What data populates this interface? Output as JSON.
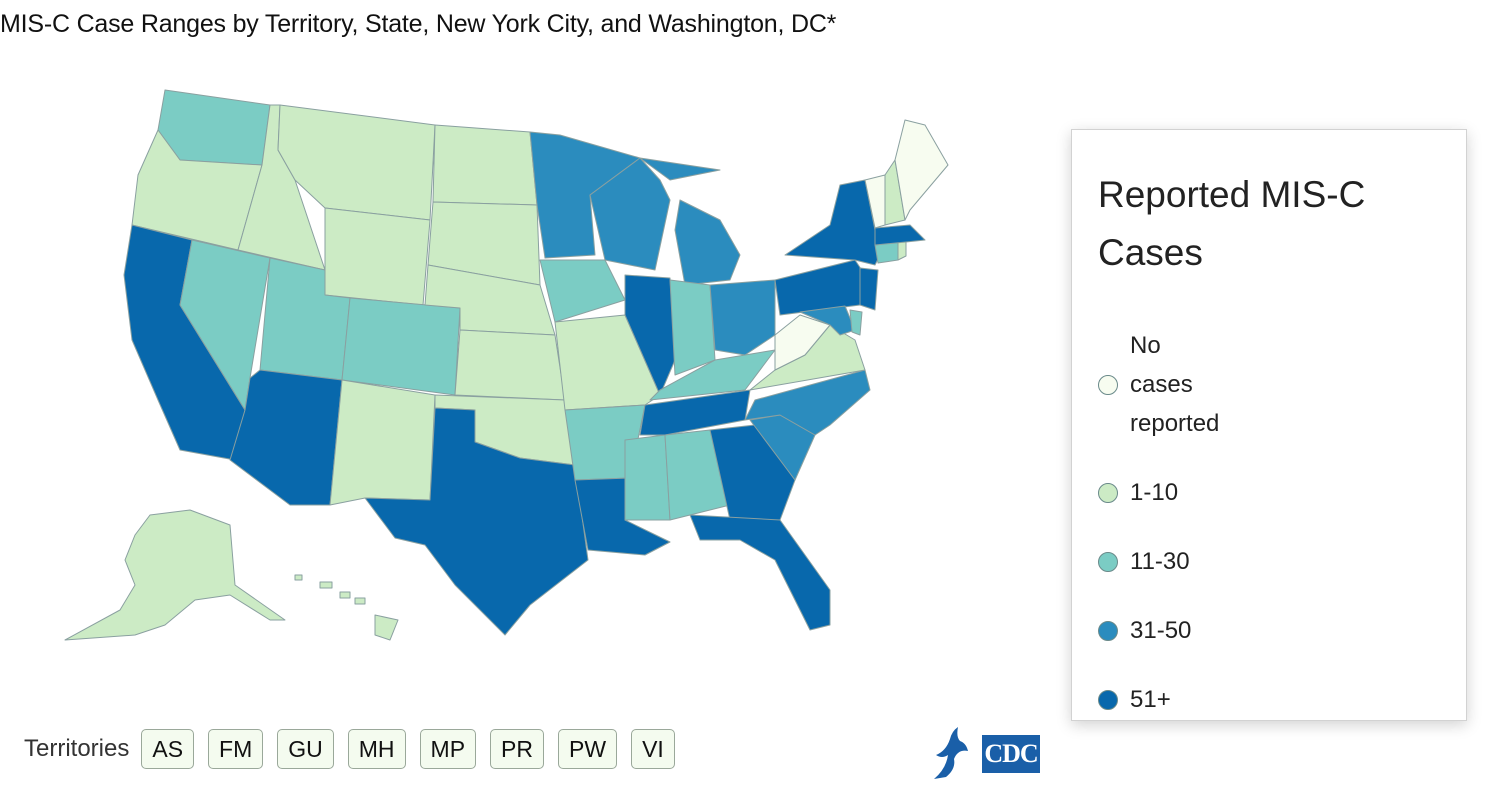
{
  "title": "MIS-C Case Ranges by Territory, State, New York City, and Washington, DC*",
  "legend": {
    "title": "Reported MIS-C Cases",
    "items": [
      {
        "label": "No cases reported",
        "color": "#f7fcf0"
      },
      {
        "label": "1-10",
        "color": "#ccebc5"
      },
      {
        "label": "11-30",
        "color": "#7bccc4"
      },
      {
        "label": "31-50",
        "color": "#2b8cbe"
      },
      {
        "label": "51+",
        "color": "#0868ac"
      }
    ]
  },
  "territories": {
    "label": "Territories",
    "buttons": [
      "AS",
      "FM",
      "GU",
      "MH",
      "MP",
      "PR",
      "PW",
      "VI"
    ]
  },
  "logo": {
    "text": "CDC"
  },
  "states": {
    "WA": 2,
    "OR": 1,
    "CA": 4,
    "ID": 1,
    "NV": 2,
    "MT": 1,
    "WY": 1,
    "UT": 2,
    "AZ": 4,
    "CO": 2,
    "NM": 1,
    "ND": 1,
    "SD": 1,
    "NE": 1,
    "KS": 1,
    "OK": 1,
    "TX": 4,
    "MN": 3,
    "IA": 2,
    "MO": 1,
    "AR": 2,
    "LA": 4,
    "WI": 3,
    "IL": 4,
    "MI": 3,
    "IN": 2,
    "OH": 3,
    "KY": 2,
    "TN": 4,
    "MS": 2,
    "AL": 2,
    "GA": 4,
    "FL": 4,
    "SC": 3,
    "NC": 3,
    "VA": 1,
    "WV": 0,
    "PA": 4,
    "NY": 4,
    "NJ": 4,
    "DE": 2,
    "MD": 3,
    "CT": 2,
    "RI": 1,
    "MA": 4,
    "VT": 0,
    "NH": 1,
    "ME": 0,
    "AK": 1,
    "HI": 1
  }
}
